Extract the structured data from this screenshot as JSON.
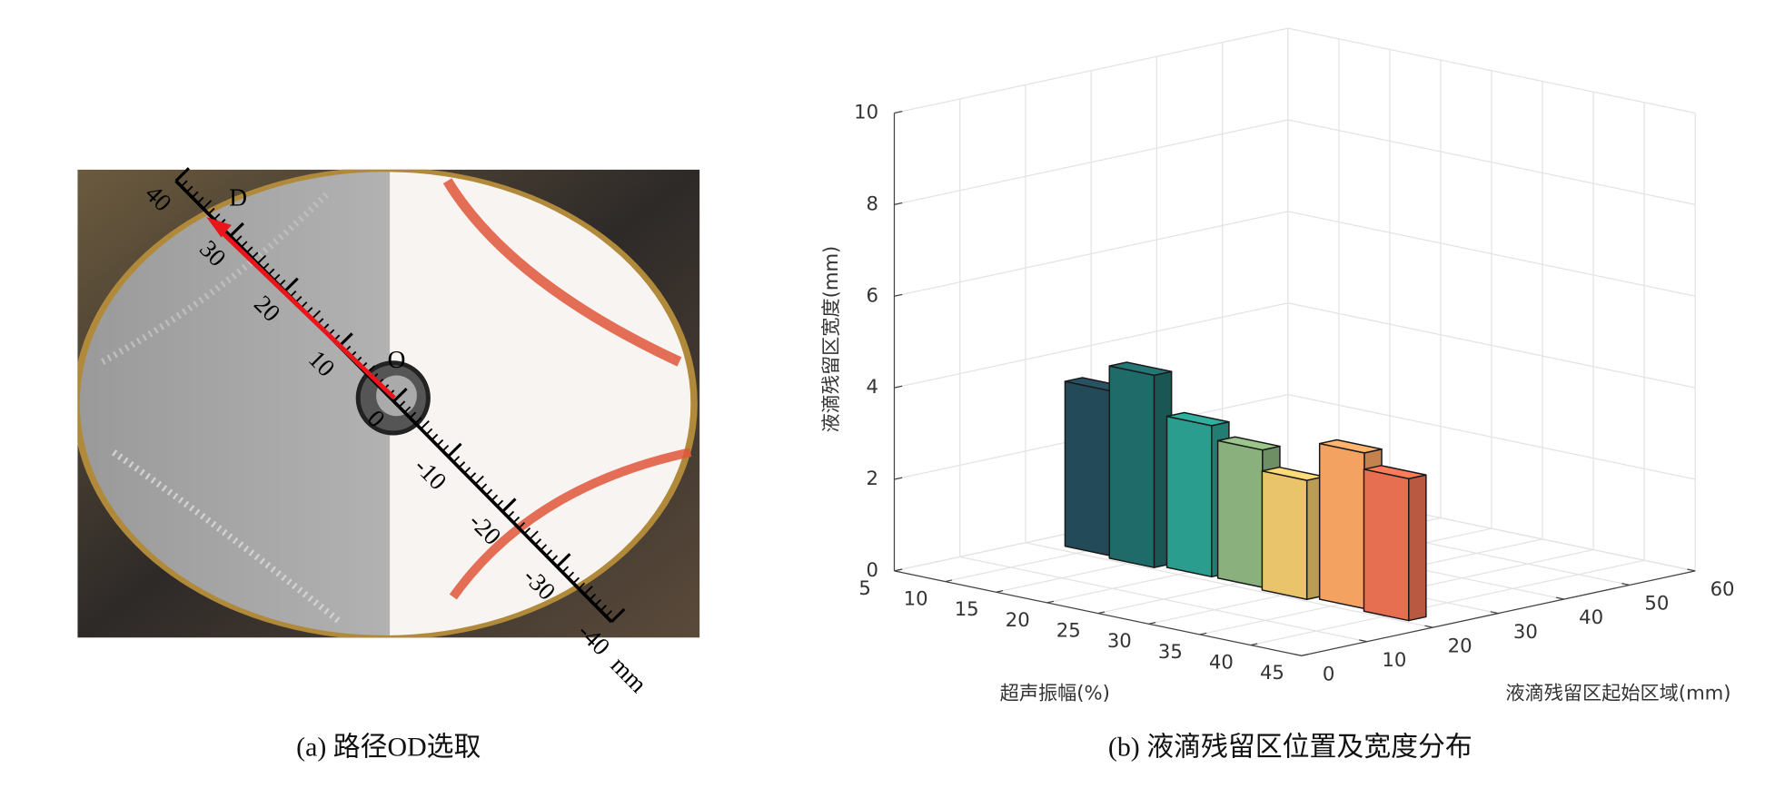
{
  "photo_panel": {
    "caption": "(a) 路径OD选取",
    "point_labels": {
      "end": "D",
      "origin": "O"
    },
    "ruler": {
      "lim": [
        -40,
        40
      ],
      "ticks": [
        40,
        30,
        20,
        10,
        0,
        -10,
        -20,
        -30,
        -40
      ],
      "unit": "mm"
    }
  },
  "chart_data": {
    "type": "bar3d",
    "caption": "(b) 液滴残留区位置及宽度分布",
    "x_label": "超声振幅(%)",
    "y_label": "液滴残留区起始区域(mm)",
    "z_label": "液滴残留区宽度(mm)",
    "x": [
      10,
      15,
      20,
      25,
      30,
      35,
      40
    ],
    "y": [
      23,
      22,
      23,
      23,
      22,
      23,
      22
    ],
    "z": [
      3.6,
      4.2,
      3.3,
      3.0,
      2.6,
      3.4,
      3.1
    ],
    "colors": [
      "#234a58",
      "#1f6b69",
      "#2a9d8f",
      "#8ab17d",
      "#e9c46a",
      "#f4a261",
      "#e76f51"
    ],
    "xlim": [
      5,
      45
    ],
    "xticks": [
      5,
      10,
      15,
      20,
      25,
      30,
      35,
      40,
      45
    ],
    "ylim": [
      0,
      60
    ],
    "yticks": [
      0,
      10,
      20,
      30,
      40,
      50,
      60
    ],
    "zlim": [
      0,
      10
    ],
    "zticks": [
      0,
      2,
      4,
      6,
      8,
      10
    ],
    "grid": true
  }
}
